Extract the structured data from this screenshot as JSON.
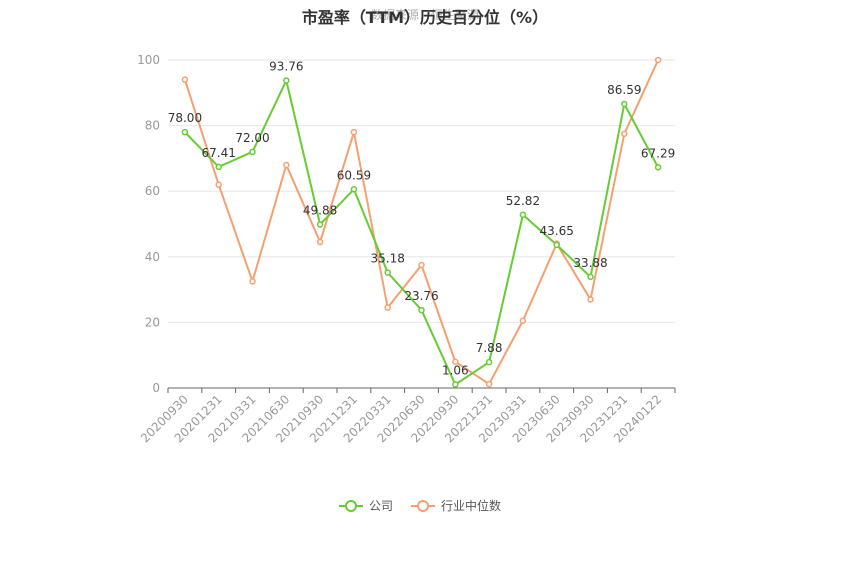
{
  "chart_data": {
    "type": "line",
    "title": "市盈率（TTM）历史百分位（%）",
    "watermark": "数据来源：恒生聚源",
    "categories": [
      "20200930",
      "20201231",
      "20210331",
      "20210630",
      "20210930",
      "20211231",
      "20220331",
      "20220630",
      "20220930",
      "20221231",
      "20230331",
      "20230630",
      "20230930",
      "20231231",
      "20240122"
    ],
    "ylim": [
      0,
      100
    ],
    "yticks": [
      0,
      20,
      40,
      60,
      80,
      100
    ],
    "grid": true,
    "legend_position": "bottom",
    "series": [
      {
        "name": "公司",
        "color": "#66cc33",
        "show_labels": true,
        "values": [
          78.0,
          67.41,
          72.0,
          93.76,
          49.88,
          60.59,
          35.18,
          23.76,
          1.06,
          7.88,
          52.82,
          43.65,
          33.88,
          86.59,
          67.29
        ]
      },
      {
        "name": "行业中位数",
        "color": "#f4a070",
        "show_labels": false,
        "values": [
          94,
          62,
          32.5,
          68,
          44.5,
          78,
          24.5,
          37.5,
          8,
          1.2,
          20.5,
          44,
          27,
          77.5,
          100
        ]
      }
    ]
  }
}
